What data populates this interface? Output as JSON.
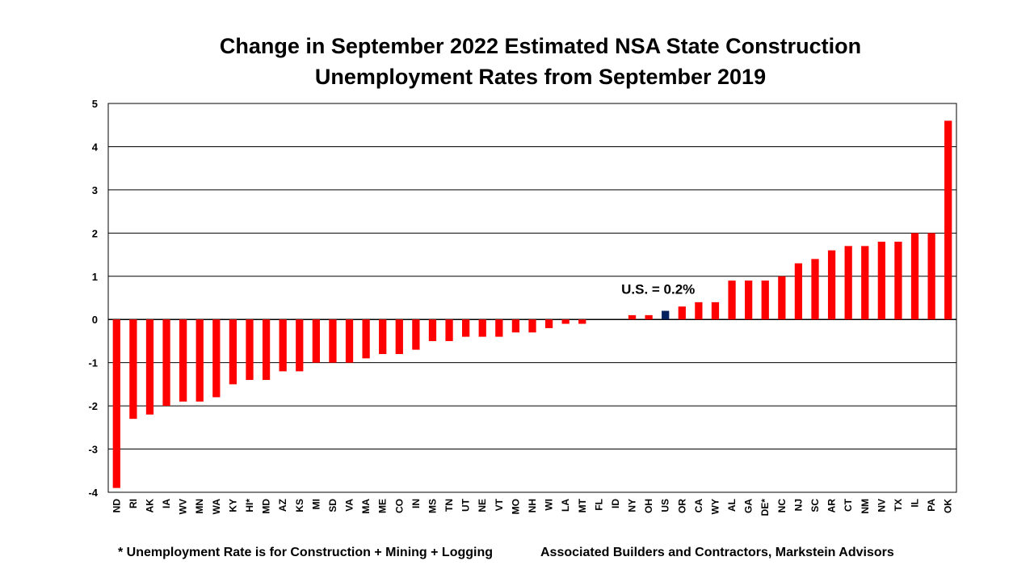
{
  "chart_data": {
    "type": "bar",
    "title_line1": "Change in September 2022 Estimated NSA State Construction",
    "title_line2": "Unemployment Rates from September 2019",
    "categories": [
      "ND",
      "RI",
      "AK",
      "IA",
      "WV",
      "MN",
      "WA",
      "KY",
      "HI*",
      "MD",
      "AZ",
      "KS",
      "MI",
      "SD",
      "VA",
      "MA",
      "ME",
      "CO",
      "IN",
      "MS",
      "TN",
      "UT",
      "NE",
      "VT",
      "MO",
      "NH",
      "WI",
      "LA",
      "MT",
      "FL",
      "ID",
      "NY",
      "OH",
      "US",
      "OR",
      "CA",
      "WY",
      "AL",
      "GA",
      "DE*",
      "NC",
      "NJ",
      "SC",
      "AR",
      "CT",
      "NM",
      "NV",
      "TX",
      "IL",
      "PA",
      "OK"
    ],
    "values": [
      -3.9,
      -2.3,
      -2.2,
      -2.0,
      -1.9,
      -1.9,
      -1.8,
      -1.5,
      -1.4,
      -1.4,
      -1.2,
      -1.2,
      -1.0,
      -1.0,
      -1.0,
      -0.9,
      -0.8,
      -0.8,
      -0.7,
      -0.5,
      -0.5,
      -0.4,
      -0.4,
      -0.4,
      -0.3,
      -0.3,
      -0.2,
      -0.1,
      -0.1,
      0.0,
      0.0,
      0.1,
      0.1,
      0.2,
      0.3,
      0.4,
      0.4,
      0.9,
      0.9,
      0.9,
      1.0,
      1.3,
      1.4,
      1.6,
      1.7,
      1.7,
      1.8,
      1.8,
      2.0,
      2.0,
      4.6
    ],
    "highlight_category": "US",
    "annotation": "U.S. = 0.2%",
    "ylim": [
      -4,
      5
    ],
    "yticks": [
      5,
      4,
      3,
      2,
      1,
      0,
      -1,
      -2,
      -3,
      -4
    ],
    "grid": true,
    "colors": {
      "bar": "#ff0000",
      "highlight": "#002060",
      "axis": "#000000",
      "grid": "#000000"
    }
  },
  "footnote_left": "* Unemployment Rate is for Construction + Mining + Logging",
  "footnote_right": "Associated Builders and Contractors, Markstein Advisors"
}
